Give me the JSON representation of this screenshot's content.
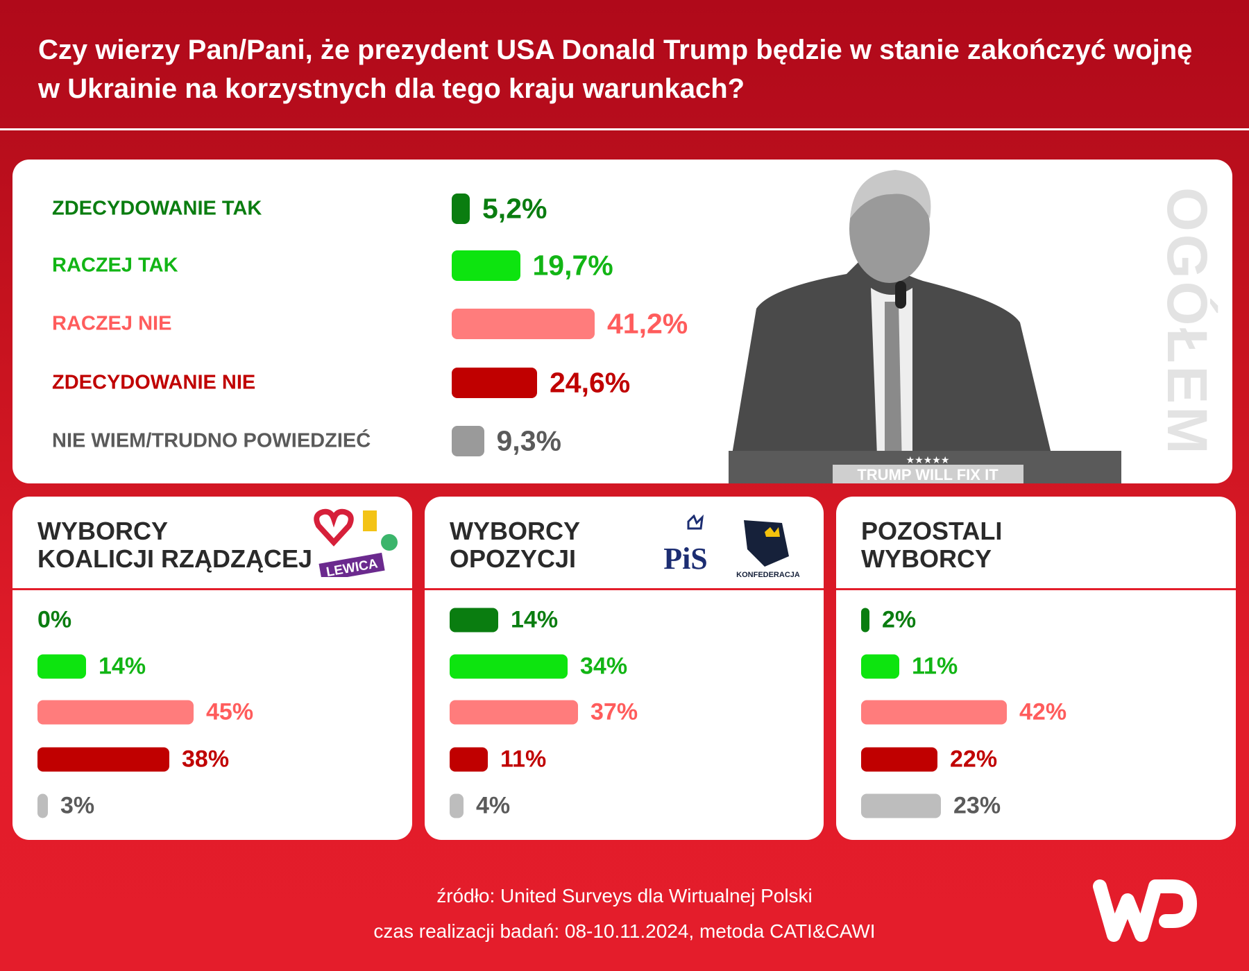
{
  "title": "Czy wierzy Pan/Pani, że prezydent USA Donald Trump będzie w stanie zakończyć wojnę w Ukrainie na korzystnych dla tego kraju warunkach?",
  "colors": {
    "zdecydowanie_tak": "#0a7d10",
    "raczej_tak": "#0de40f",
    "raczej_nie": "#ff7c7c",
    "zdecydowanie_nie": "#c00000",
    "nie_wiem": "#9a9a9a"
  },
  "chart_data": [
    {
      "type": "bar",
      "title": "OGÓŁEM",
      "categories": [
        "ZDECYDOWANIE TAK",
        "RACZEJ TAK",
        "RACZEJ NIE",
        "ZDECYDOWANIE NIE",
        "NIE WIEM/TRUDNO POWIEDZIEĆ"
      ],
      "values": [
        5.2,
        19.7,
        41.2,
        24.6,
        9.3
      ],
      "labels": [
        "5,2%",
        "19,7%",
        "41,2%",
        "24,6%",
        "9,3%"
      ]
    },
    {
      "type": "bar",
      "title": "WYBORCY KOALICJI RZĄDZĄCEJ",
      "categories": [
        "ZDECYDOWANIE TAK",
        "RACZEJ TAK",
        "RACZEJ NIE",
        "ZDECYDOWANIE NIE",
        "NIE WIEM/TRUDNO POWIEDZIEĆ"
      ],
      "values": [
        0,
        14,
        45,
        38,
        3
      ],
      "labels": [
        "0%",
        "14%",
        "45%",
        "38%",
        "3%"
      ]
    },
    {
      "type": "bar",
      "title": "WYBORCY OPOZYCJI",
      "categories": [
        "ZDECYDOWANIE TAK",
        "RACZEJ TAK",
        "RACZEJ NIE",
        "ZDECYDOWANIE NIE",
        "NIE WIEM/TRUDNO POWIEDZIEĆ"
      ],
      "values": [
        14,
        34,
        37,
        11,
        4
      ],
      "labels": [
        "14%",
        "34%",
        "37%",
        "11%",
        "4%"
      ]
    },
    {
      "type": "bar",
      "title": "POZOSTALI WYBORCY",
      "categories": [
        "ZDECYDOWANIE TAK",
        "RACZEJ TAK",
        "RACZEJ NIE",
        "ZDECYDOWANIE NIE",
        "NIE WIEM/TRUDNO POWIEDZIEĆ"
      ],
      "values": [
        2,
        11,
        42,
        22,
        23
      ],
      "labels": [
        "2%",
        "11%",
        "42%",
        "22%",
        "23%"
      ]
    }
  ],
  "subtitles": [
    [
      "WYBORCY",
      "KOALICJI RZĄDZĄCEJ"
    ],
    [
      "WYBORCY",
      "OPOZYCJI"
    ],
    [
      "POZOSTALI",
      "WYBORCY"
    ]
  ],
  "logos": {
    "lewica": "LEWICA",
    "pis": "PiS",
    "konfederacja": "KONFEDERACJA",
    "podium": "TRUMP WILL FIX IT",
    "brand": "WP"
  },
  "footer": {
    "source": "źródło: United Surveys dla Wirtualnej Polski",
    "period": "czas realizacji badań: 08-10.11.2024, metoda CATI&CAWI"
  }
}
